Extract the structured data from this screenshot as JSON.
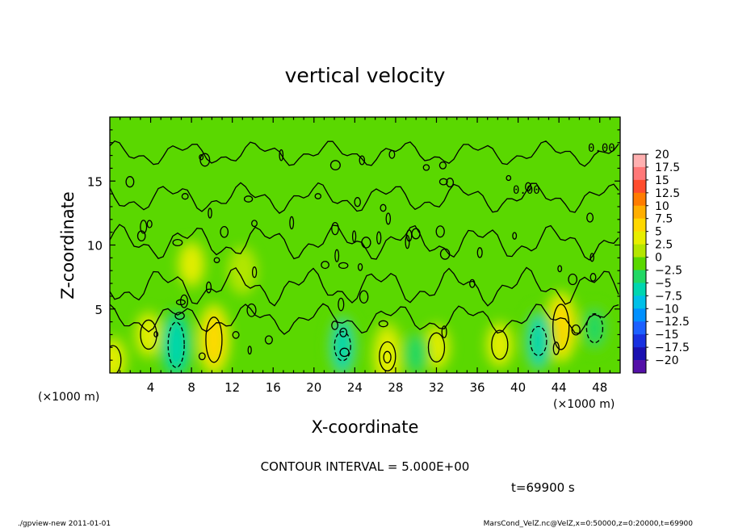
{
  "chart_data": {
    "type": "heatmap",
    "title": "vertical velocity",
    "xlabel": "X-coordinate",
    "ylabel": "Z-coordinate",
    "x_unit": "(×1000 m)",
    "y_unit": "(×1000 m)",
    "xlim": [
      0,
      50
    ],
    "ylim": [
      0,
      20
    ],
    "x_ticks": [
      4,
      8,
      12,
      16,
      20,
      24,
      28,
      32,
      36,
      40,
      44,
      48
    ],
    "y_ticks": [
      5,
      10,
      15
    ],
    "contour_label": "0.00",
    "contour_interval_text": "CONTOUR INTERVAL = 5.000E+00",
    "time_text": "t=69900 s",
    "colorbar": {
      "levels": [
        20,
        17.5,
        15,
        12.5,
        10,
        7.5,
        5,
        2.5,
        0,
        -2.5,
        -5,
        -7.5,
        -10,
        -12.5,
        -15,
        -17.5,
        -20
      ],
      "labels": [
        "20",
        "17.5",
        "15",
        "12.5",
        "10",
        "7.5",
        "5",
        "2.5",
        "0",
        "−2.5",
        "−5",
        "−7.5",
        "−10",
        "−12.5",
        "−15",
        "−17.5",
        "−20"
      ],
      "colors": [
        "#ffb0b0",
        "#ff7878",
        "#ff4c2c",
        "#ff7c00",
        "#ffae00",
        "#ffd800",
        "#e8ee00",
        "#b4e600",
        "#5ad800",
        "#22d864",
        "#00d6b0",
        "#00c0e8",
        "#0090ff",
        "#1c60ff",
        "#1830e0",
        "#1a10b0",
        "#5410a8"
      ]
    },
    "anomalies": [
      {
        "x": 10.2,
        "z": 2.6,
        "w": 7.2
      },
      {
        "x": 44.2,
        "z": 3.6,
        "w": 7.0
      },
      {
        "x": 3.8,
        "z": 3.0,
        "w": 4.5
      },
      {
        "x": 27.2,
        "z": 1.3,
        "w": 5.0
      },
      {
        "x": 38.2,
        "z": 2.2,
        "w": 4.5
      },
      {
        "x": 32.0,
        "z": 2.0,
        "w": 4.0
      },
      {
        "x": 0.3,
        "z": 1.0,
        "w": 4.0
      },
      {
        "x": 6.5,
        "z": 2.2,
        "w": -6.0
      },
      {
        "x": 22.8,
        "z": 2.1,
        "w": -5.5
      },
      {
        "x": 42.0,
        "z": 2.5,
        "w": -5.5
      },
      {
        "x": 47.5,
        "z": 3.5,
        "w": -4.0
      },
      {
        "x": 30.0,
        "z": 1.5,
        "w": -3.0
      },
      {
        "x": 8.0,
        "z": 8.5,
        "w": 3.0
      },
      {
        "x": 13.0,
        "z": 8.0,
        "w": 2.0
      }
    ],
    "footer_left": "./gpview-new   2011-01-01",
    "footer_right": "MarsCond_VelZ.nc@VelZ,x=0:50000,z=0:20000,t=69900"
  }
}
